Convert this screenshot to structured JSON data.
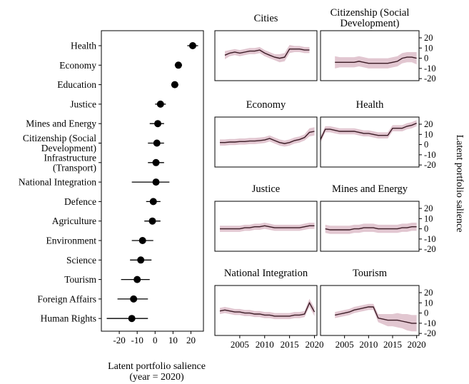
{
  "chart_data": [
    {
      "type": "dot-whisker",
      "xlabel_lines": [
        "Latent portfolio salience",
        "(year = 2020)"
      ],
      "xlim": [
        -30,
        27
      ],
      "xticks": [
        -20,
        -10,
        0,
        10,
        20
      ],
      "xtick_labels": [
        "-20",
        "-10",
        "0",
        "10",
        "20"
      ],
      "categories": [
        {
          "label_lines": [
            "Health"
          ],
          "value": 21,
          "low": 18,
          "high": 24
        },
        {
          "label_lines": [
            "Economy"
          ],
          "value": 13,
          "low": 11,
          "high": 15
        },
        {
          "label_lines": [
            "Education"
          ],
          "value": 11,
          "low": 9,
          "high": 13
        },
        {
          "label_lines": [
            "Justice"
          ],
          "value": 3,
          "low": 0,
          "high": 6
        },
        {
          "label_lines": [
            "Mines and Energy"
          ],
          "value": 1.5,
          "low": -3,
          "high": 5
        },
        {
          "label_lines": [
            "Citizenship (Social",
            "Development)"
          ],
          "value": 1,
          "low": -4,
          "high": 5
        },
        {
          "label_lines": [
            "Infrastructure",
            "(Transport)"
          ],
          "value": 0.5,
          "low": -4,
          "high": 5
        },
        {
          "label_lines": [
            "National Integration"
          ],
          "value": 0.5,
          "low": -13,
          "high": 8
        },
        {
          "label_lines": [
            "Defence"
          ],
          "value": -1,
          "low": -5,
          "high": 3
        },
        {
          "label_lines": [
            "Agriculture"
          ],
          "value": -1.5,
          "low": -6,
          "high": 3
        },
        {
          "label_lines": [
            "Environment"
          ],
          "value": -7,
          "low": -13,
          "high": -1
        },
        {
          "label_lines": [
            "Science"
          ],
          "value": -8,
          "low": -14,
          "high": -2
        },
        {
          "label_lines": [
            "Tourism"
          ],
          "value": -10,
          "low": -19,
          "high": -3
        },
        {
          "label_lines": [
            "Foreign Affairs"
          ],
          "value": -12,
          "low": -21,
          "high": -4
        },
        {
          "label_lines": [
            "Human Rights"
          ],
          "value": -13,
          "low": -27,
          "high": -4
        }
      ]
    },
    {
      "type": "area",
      "ylabel": "Latent portfolio salience",
      "xlim": [
        2000,
        2020.5
      ],
      "ylim": [
        -22,
        27
      ],
      "xticks": [
        2005,
        2010,
        2015,
        2020
      ],
      "xtick_labels": [
        "2005",
        "2010",
        "2015",
        "2020"
      ],
      "yticks": [
        20,
        10,
        0,
        -10,
        -20
      ],
      "ytick_labels": [
        "20",
        "10",
        "0",
        "-10",
        "-20"
      ],
      "line_color": "#3a1a24",
      "band_color": "#d8b4c2",
      "panels": [
        {
          "title_lines": [
            "Cities"
          ],
          "x": [
            2002,
            2003,
            2004,
            2005,
            2006,
            2007,
            2008,
            2009,
            2010,
            2011,
            2012,
            2013,
            2014,
            2015,
            2016,
            2017,
            2018,
            2019
          ],
          "y": [
            3,
            5,
            6,
            5,
            6,
            7,
            7,
            8,
            5,
            3,
            1,
            0,
            1,
            9,
            9,
            9,
            8,
            8
          ],
          "band": [
            4,
            3,
            3,
            3,
            3,
            3,
            3,
            3,
            3,
            3,
            3,
            4,
            4,
            4,
            3,
            3,
            3,
            3
          ]
        },
        {
          "title_lines": [
            "Citizenship (Social",
            "Development)"
          ],
          "x": [
            2003,
            2004,
            2005,
            2006,
            2007,
            2008,
            2009,
            2010,
            2011,
            2012,
            2013,
            2014,
            2015,
            2016,
            2017,
            2018,
            2019,
            2020
          ],
          "y": [
            -4,
            -4,
            -4,
            -4,
            -4,
            -3,
            -4,
            -5,
            -5,
            -5,
            -5,
            -5,
            -4,
            -3,
            0,
            1,
            1,
            0
          ],
          "band": [
            6,
            5,
            5,
            5,
            5,
            5,
            5,
            5,
            5,
            5,
            5,
            5,
            5,
            5,
            5,
            5,
            5,
            6
          ]
        },
        {
          "title_lines": [
            "Economy"
          ],
          "x": [
            2001,
            2002,
            2003,
            2004,
            2005,
            2006,
            2007,
            2008,
            2009,
            2010,
            2011,
            2012,
            2013,
            2014,
            2015,
            2016,
            2017,
            2018,
            2019,
            2020
          ],
          "y": [
            2,
            2,
            2.5,
            2.5,
            3,
            3,
            3.5,
            3.5,
            4,
            4.5,
            6,
            4,
            2,
            1,
            2,
            4,
            5,
            7,
            12,
            13
          ],
          "band": [
            3,
            3,
            3,
            3,
            3,
            3,
            3,
            3,
            3,
            3,
            3,
            3,
            3,
            3,
            3,
            3,
            3,
            3,
            4,
            4
          ]
        },
        {
          "title_lines": [
            "Health"
          ],
          "x": [
            2000,
            2001,
            2002,
            2003,
            2004,
            2005,
            2006,
            2007,
            2008,
            2009,
            2010,
            2011,
            2012,
            2013,
            2014,
            2015,
            2016,
            2017,
            2018,
            2019,
            2020
          ],
          "y": [
            5,
            15,
            15,
            14,
            13,
            13,
            13,
            13,
            12,
            11,
            11,
            10,
            9,
            9,
            9,
            16,
            16,
            16,
            18,
            19,
            21
          ],
          "band": [
            3,
            3,
            3,
            3,
            3,
            3,
            3,
            3,
            3,
            3,
            3,
            3,
            3,
            3,
            3,
            3,
            3,
            3,
            3,
            3,
            3
          ]
        },
        {
          "title_lines": [
            "Justice"
          ],
          "x": [
            2001,
            2002,
            2003,
            2004,
            2005,
            2006,
            2007,
            2008,
            2009,
            2010,
            2011,
            2012,
            2013,
            2014,
            2015,
            2016,
            2017,
            2018,
            2019,
            2020
          ],
          "y": [
            0,
            0,
            0,
            0,
            0,
            1,
            1,
            2,
            2,
            3,
            2,
            1,
            1,
            1,
            1,
            1,
            1,
            2,
            3,
            3
          ],
          "band": [
            3,
            3,
            3,
            3,
            3,
            3,
            3,
            3,
            3,
            3,
            3,
            3,
            3,
            3,
            3,
            3,
            3,
            3,
            3,
            3
          ]
        },
        {
          "title_lines": [
            "Mines and Energy"
          ],
          "x": [
            2001,
            2002,
            2003,
            2004,
            2005,
            2006,
            2007,
            2008,
            2009,
            2010,
            2011,
            2012,
            2013,
            2014,
            2015,
            2016,
            2017,
            2018,
            2019,
            2020
          ],
          "y": [
            0,
            -1,
            -1,
            -1,
            -1,
            -1,
            0,
            0,
            1,
            1,
            1,
            0,
            0,
            0,
            0,
            0,
            1,
            1,
            2,
            2
          ],
          "band": [
            4,
            4,
            4,
            4,
            4,
            4,
            4,
            4,
            4,
            4,
            4,
            4,
            4,
            4,
            4,
            4,
            4,
            4,
            4,
            4
          ]
        },
        {
          "title_lines": [
            "National Integration"
          ],
          "x": [
            2001,
            2002,
            2003,
            2004,
            2005,
            2006,
            2007,
            2008,
            2009,
            2010,
            2011,
            2012,
            2013,
            2014,
            2015,
            2016,
            2017,
            2018,
            2019,
            2020
          ],
          "y": [
            2,
            3,
            2,
            1,
            1,
            0,
            0,
            -1,
            -1,
            -2,
            -2,
            -3,
            -3,
            -3,
            -3,
            -2,
            -2,
            -1,
            10,
            1
          ],
          "band": [
            3,
            3,
            3,
            3,
            3,
            3,
            3,
            3,
            3,
            3,
            3,
            3,
            3,
            3,
            3,
            3,
            3,
            3,
            4,
            4
          ]
        },
        {
          "title_lines": [
            "Tourism"
          ],
          "x": [
            2003,
            2004,
            2005,
            2006,
            2007,
            2008,
            2009,
            2010,
            2011,
            2012,
            2013,
            2014,
            2015,
            2016,
            2017,
            2018,
            2019,
            2020
          ],
          "y": [
            -2,
            -1,
            0,
            1,
            3,
            4,
            5,
            6,
            6,
            -5,
            -6,
            -7,
            -7,
            -7,
            -8,
            -9,
            -10,
            -10
          ],
          "band": [
            3,
            3,
            3,
            3,
            3,
            3,
            3,
            3,
            3,
            4,
            5,
            6,
            6,
            7,
            7,
            8,
            8,
            8
          ]
        }
      ]
    }
  ]
}
